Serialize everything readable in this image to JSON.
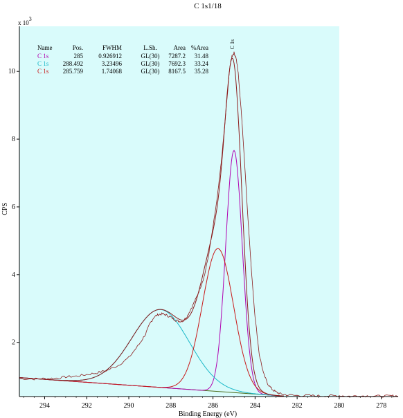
{
  "chart_data": {
    "type": "line",
    "title": "C 1s1/18",
    "xlabel": "Binding Energy (eV)",
    "ylabel": "CPS",
    "y_multiplier_label": "x 10",
    "y_multiplier_exp": "3",
    "xlim": [
      295.2,
      277.2
    ],
    "ylim": [
      0.4,
      11.7
    ],
    "x_reversed": true,
    "x_ticks": [
      294,
      292,
      290,
      288,
      286,
      284,
      282,
      280,
      278
    ],
    "y_ticks": [
      2,
      4,
      6,
      8,
      10
    ],
    "fit_region": [
      295.2,
      280.0
    ],
    "colors": {
      "region_fill": "#d9fbfb",
      "envelope": "#8b1a1a",
      "background": "#4a6b1a",
      "comp_magenta": "#b000b0",
      "comp_cyan": "#1ab8c8",
      "comp_red": "#c81818",
      "raw": "#8b1a1a"
    },
    "table": {
      "headers": [
        "Name",
        "Pos.",
        "FWHM",
        "L.Sh.",
        "Area",
        "%Area"
      ],
      "rows": [
        {
          "name": "C 1s",
          "pos": "285",
          "fwhm": "0.926912",
          "lsh": "GL(30)",
          "area": "7287.2",
          "pct": "31.48",
          "color": "#b000b0"
        },
        {
          "name": "C 1s",
          "pos": "288.492",
          "fwhm": "3.23496",
          "lsh": "GL(30)",
          "area": "7692.3",
          "pct": "33.24",
          "color": "#1ab8c8"
        },
        {
          "name": "C 1s",
          "pos": "285.759",
          "fwhm": "1.74068",
          "lsh": "GL(30)",
          "area": "8167.5",
          "pct": "35.28",
          "color": "#c81818"
        }
      ]
    },
    "peak_label": "C 1s",
    "peak_label_x": 285.0,
    "baseline": {
      "start": [
        295.2,
        0.96
      ],
      "end": [
        282.8,
        0.42
      ]
    },
    "components": [
      {
        "center": 285.0,
        "height": 7.15,
        "fwhm": 0.93,
        "color": "#b000b0"
      },
      {
        "center": 288.49,
        "height": 2.3,
        "fwhm": 3.23,
        "color": "#1ab8c8"
      },
      {
        "center": 285.76,
        "height": 4.22,
        "fwhm": 1.74,
        "color": "#c81818"
      }
    ],
    "raw_points": [
      [
        295.2,
        0.93
      ],
      [
        294.5,
        0.92
      ],
      [
        294.0,
        0.93
      ],
      [
        293.5,
        0.94
      ],
      [
        293.0,
        0.98
      ],
      [
        292.5,
        1.0
      ],
      [
        292.0,
        1.05
      ],
      [
        291.5,
        1.1
      ],
      [
        291.0,
        1.18
      ],
      [
        290.5,
        1.32
      ],
      [
        290.0,
        1.55
      ],
      [
        289.5,
        1.95
      ],
      [
        289.2,
        2.25
      ],
      [
        289.0,
        2.55
      ],
      [
        288.8,
        2.75
      ],
      [
        288.6,
        2.82
      ],
      [
        288.4,
        2.84
      ],
      [
        288.2,
        2.8
      ],
      [
        288.0,
        2.74
      ],
      [
        287.8,
        2.66
      ],
      [
        287.6,
        2.62
      ],
      [
        287.4,
        2.64
      ],
      [
        287.2,
        2.8
      ],
      [
        287.0,
        3.05
      ],
      [
        286.8,
        3.3
      ],
      [
        286.6,
        3.62
      ],
      [
        286.4,
        3.98
      ],
      [
        286.2,
        4.6
      ],
      [
        286.0,
        5.4
      ],
      [
        285.8,
        6.25
      ],
      [
        285.6,
        7.35
      ],
      [
        285.4,
        8.7
      ],
      [
        285.2,
        10.15
      ],
      [
        285.1,
        10.45
      ],
      [
        285.0,
        10.55
      ],
      [
        284.9,
        10.4
      ],
      [
        284.8,
        9.95
      ],
      [
        284.6,
        8.35
      ],
      [
        284.4,
        6.3
      ],
      [
        284.2,
        4.35
      ],
      [
        284.0,
        2.75
      ],
      [
        283.8,
        1.65
      ],
      [
        283.6,
        1.08
      ],
      [
        283.4,
        0.78
      ],
      [
        283.2,
        0.62
      ],
      [
        283.0,
        0.53
      ],
      [
        282.8,
        0.48
      ],
      [
        282.5,
        0.45
      ],
      [
        282.0,
        0.43
      ],
      [
        281.5,
        0.43
      ],
      [
        281.0,
        0.42
      ],
      [
        280.5,
        0.42
      ],
      [
        280.0,
        0.43
      ],
      [
        279.5,
        0.41
      ],
      [
        279.0,
        0.42
      ],
      [
        278.5,
        0.42
      ],
      [
        278.0,
        0.41
      ],
      [
        277.5,
        0.42
      ],
      [
        277.2,
        0.42
      ]
    ]
  }
}
